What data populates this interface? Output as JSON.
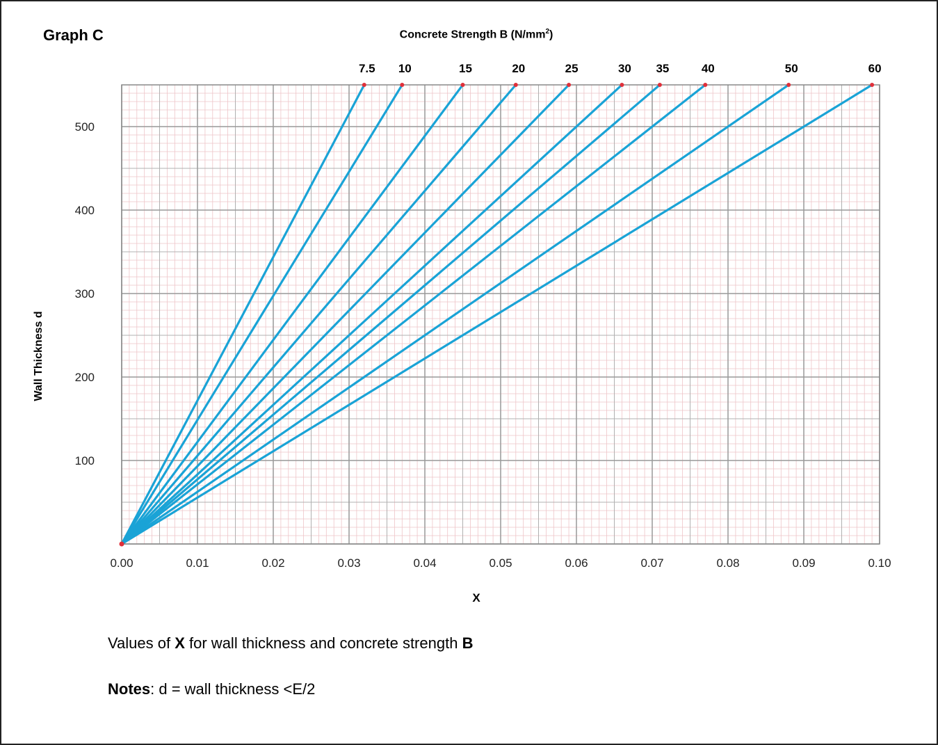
{
  "page": {
    "graph_title": "Graph C",
    "caption_prefix": "Values of ",
    "caption_x": "X",
    "caption_middle": " for wall thickness and concrete strength ",
    "caption_b": "B",
    "notes_label": "Notes",
    "notes_text": ": d = wall thickness <E/2"
  },
  "chart_data": {
    "type": "line",
    "title": "Graph C",
    "top_axis_label_main": "Concrete Strength B (N/mm",
    "top_axis_label_sup": "2",
    "top_axis_label_end": ")",
    "xlabel": "X",
    "ylabel": "Wall Thickness d",
    "xlim": [
      0,
      0.1
    ],
    "ylim": [
      0,
      550
    ],
    "x_ticks": [
      "0.00",
      "0.01",
      "0.02",
      "0.03",
      "0.04",
      "0.05",
      "0.06",
      "0.07",
      "0.08",
      "0.09",
      "0.10"
    ],
    "y_ticks": [
      "100",
      "200",
      "300",
      "400",
      "500"
    ],
    "grid": true,
    "line_color": "#1aa3d6",
    "point_color": "#e0303a",
    "series": [
      {
        "name": "7.5",
        "x": [
          0,
          0.032
        ],
        "y": [
          0,
          550
        ]
      },
      {
        "name": "10",
        "x": [
          0,
          0.037
        ],
        "y": [
          0,
          550
        ]
      },
      {
        "name": "15",
        "x": [
          0,
          0.045
        ],
        "y": [
          0,
          550
        ]
      },
      {
        "name": "20",
        "x": [
          0,
          0.052
        ],
        "y": [
          0,
          550
        ]
      },
      {
        "name": "25",
        "x": [
          0,
          0.059
        ],
        "y": [
          0,
          550
        ]
      },
      {
        "name": "30",
        "x": [
          0,
          0.066
        ],
        "y": [
          0,
          550
        ]
      },
      {
        "name": "35",
        "x": [
          0,
          0.071
        ],
        "y": [
          0,
          550
        ]
      },
      {
        "name": "40",
        "x": [
          0,
          0.077
        ],
        "y": [
          0,
          550
        ]
      },
      {
        "name": "50",
        "x": [
          0,
          0.088
        ],
        "y": [
          0,
          550
        ]
      },
      {
        "name": "60",
        "x": [
          0,
          0.099
        ],
        "y": [
          0,
          550
        ]
      }
    ]
  }
}
